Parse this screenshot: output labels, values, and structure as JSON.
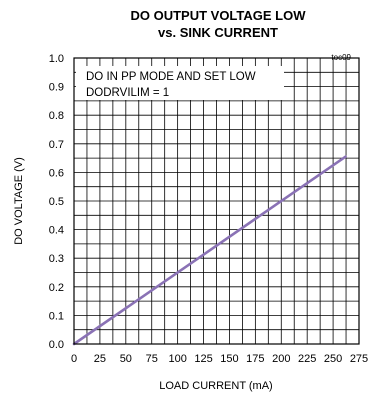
{
  "chart_data": {
    "type": "line",
    "title": "DO OUTPUT VOLTAGE LOW",
    "subtitle": "vs. SINK CURRENT",
    "xlabel": "LOAD CURRENT (mA)",
    "ylabel": "DO VOLTAGE (V)",
    "xlim": [
      0,
      275
    ],
    "ylim": [
      0,
      1.0
    ],
    "x_ticks": [
      "0",
      "25",
      "50",
      "75",
      "100",
      "125",
      "150",
      "175",
      "200",
      "225",
      "250",
      "275"
    ],
    "y_ticks": [
      "0.0",
      "0.1",
      "0.2",
      "0.3",
      "0.4",
      "0.5",
      "0.6",
      "0.7",
      "0.8",
      "0.9",
      "1.0"
    ],
    "x_grid_step": 12.5,
    "y_grid_step": 0.05,
    "grid": true,
    "annotation": [
      "DO IN PP MODE AND SET LOW",
      "DODRVILIM = 1"
    ],
    "figure_tag": "toc09",
    "series": [
      {
        "color": "#8a72b5",
        "x": [
          0,
          262
        ],
        "y": [
          0.0,
          0.655
        ]
      }
    ]
  }
}
